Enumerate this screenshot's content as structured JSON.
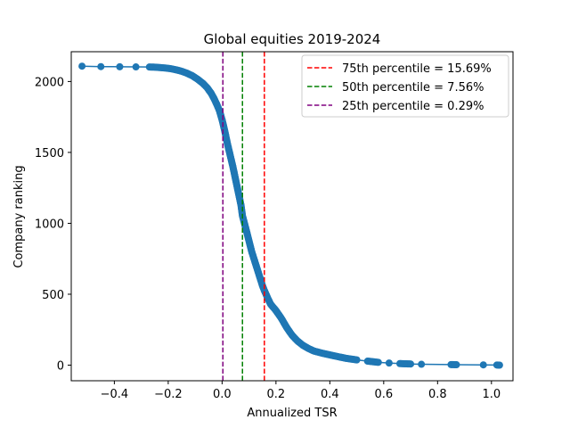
{
  "chart_data": {
    "type": "line",
    "title": "Global equities 2019-2024",
    "xlabel": "Annualized TSR",
    "ylabel": "Company ranking",
    "xlim": [
      -0.56,
      1.08
    ],
    "ylim": [
      -110,
      2210
    ],
    "xticks": [
      -0.4,
      -0.2,
      0.0,
      0.2,
      0.4,
      0.6,
      0.8,
      1.0
    ],
    "xtick_labels": [
      "−0.4",
      "−0.2",
      "0.0",
      "0.2",
      "0.4",
      "0.6",
      "0.8",
      "1.0"
    ],
    "yticks": [
      0,
      500,
      1000,
      1500,
      2000
    ],
    "ytick_labels": [
      "0",
      "500",
      "1000",
      "1500",
      "2000"
    ],
    "grid": false,
    "legend_position": "top-right",
    "series": [
      {
        "color": "#1f77b4",
        "marker": "circle",
        "points": [
          [
            -0.52,
            2108
          ],
          [
            -0.45,
            2105
          ],
          [
            -0.38,
            2104
          ],
          [
            -0.32,
            2103
          ],
          [
            -0.27,
            2102
          ],
          [
            -0.25,
            2101
          ],
          [
            -0.23,
            2098
          ],
          [
            -0.21,
            2095
          ],
          [
            -0.19,
            2090
          ],
          [
            -0.17,
            2082
          ],
          [
            -0.15,
            2072
          ],
          [
            -0.13,
            2058
          ],
          [
            -0.11,
            2040
          ],
          [
            -0.09,
            2015
          ],
          [
            -0.07,
            1985
          ],
          [
            -0.055,
            1955
          ],
          [
            -0.04,
            1915
          ],
          [
            -0.03,
            1880
          ],
          [
            -0.02,
            1840
          ],
          [
            -0.01,
            1795
          ],
          [
            0.0,
            1730
          ],
          [
            0.01,
            1650
          ],
          [
            0.02,
            1560
          ],
          [
            0.03,
            1480
          ],
          [
            0.04,
            1400
          ],
          [
            0.05,
            1310
          ],
          [
            0.06,
            1220
          ],
          [
            0.07,
            1130
          ],
          [
            0.0756,
            1053
          ],
          [
            0.09,
            950
          ],
          [
            0.1,
            875
          ],
          [
            0.11,
            800
          ],
          [
            0.12,
            740
          ],
          [
            0.13,
            680
          ],
          [
            0.14,
            620
          ],
          [
            0.15,
            560
          ],
          [
            0.1569,
            526
          ],
          [
            0.17,
            470
          ],
          [
            0.18,
            430
          ],
          [
            0.2,
            385
          ],
          [
            0.22,
            330
          ],
          [
            0.24,
            265
          ],
          [
            0.26,
            210
          ],
          [
            0.28,
            170
          ],
          [
            0.3,
            140
          ],
          [
            0.32,
            118
          ],
          [
            0.34,
            100
          ],
          [
            0.37,
            85
          ],
          [
            0.4,
            72
          ],
          [
            0.43,
            60
          ],
          [
            0.46,
            48
          ],
          [
            0.5,
            37
          ],
          [
            0.54,
            28
          ],
          [
            0.58,
            20
          ],
          [
            0.62,
            15
          ],
          [
            0.66,
            11
          ],
          [
            0.7,
            8
          ],
          [
            0.74,
            6
          ],
          [
            0.85,
            4
          ],
          [
            0.87,
            3
          ],
          [
            0.97,
            2
          ],
          [
            1.02,
            1
          ],
          [
            1.03,
            0
          ]
        ]
      }
    ],
    "vlines": [
      {
        "label": "75th percentile = 15.69%",
        "x": 0.1569,
        "color": "#ff0000"
      },
      {
        "label": "50th percentile = 7.56%",
        "x": 0.0756,
        "color": "#008000"
      },
      {
        "label": "25th percentile = 0.29%",
        "x": 0.0029,
        "color": "#800080"
      }
    ]
  }
}
